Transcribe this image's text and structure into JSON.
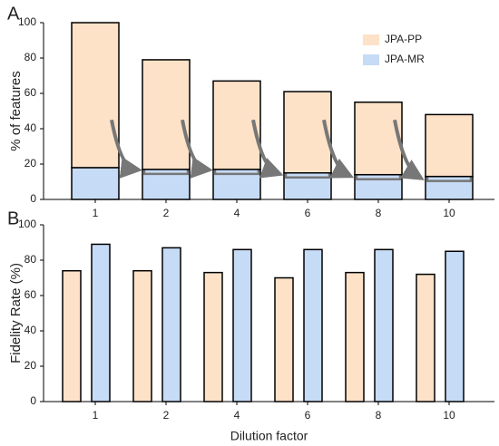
{
  "chart_data": [
    {
      "type": "stacked-bar",
      "panel_label": "A",
      "ylabel": "% of features",
      "categories": [
        "1",
        "2",
        "4",
        "6",
        "8",
        "10"
      ],
      "series": [
        {
          "name": "JPA-MR",
          "color": "#c6dbf6",
          "values": [
            18,
            17,
            17,
            15,
            14,
            13
          ]
        },
        {
          "name": "JPA-PP",
          "color": "#fde2c8",
          "values": [
            82,
            62,
            50,
            46,
            41,
            35
          ]
        }
      ],
      "ylim": [
        0,
        100
      ],
      "yticks": [
        0,
        20,
        40,
        60,
        80,
        100
      ],
      "legend": "top-right"
    },
    {
      "type": "grouped-bar",
      "panel_label": "B",
      "ylabel": "Fidelity Rate (%)",
      "xlabel": "Dilution factor",
      "categories": [
        "1",
        "2",
        "4",
        "6",
        "8",
        "10"
      ],
      "series": [
        {
          "color": "#fde2c8",
          "values": [
            74,
            74,
            73,
            70,
            73,
            72
          ]
        },
        {
          "color": "#c6dbf6",
          "values": [
            89,
            87,
            86,
            86,
            86,
            85
          ]
        }
      ],
      "ylim": [
        0,
        100
      ],
      "yticks": [
        0,
        20,
        40,
        60,
        80,
        100
      ]
    }
  ]
}
